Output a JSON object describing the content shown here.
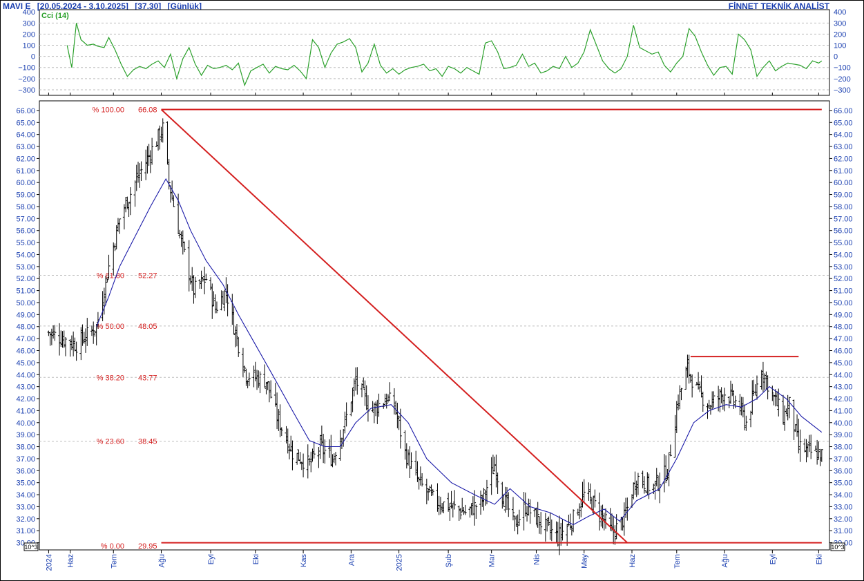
{
  "header": {
    "symbol": "MAVI  E",
    "range": "[20.05.2024 - 3.10.2025]",
    "last": "[37.30]",
    "period": "[Günlük]",
    "brand": "FİNNET TEKNİK ANALİST"
  },
  "colors": {
    "price": "#000000",
    "ma": "#1a1aa8",
    "cci": "#2aa02a",
    "fib": "#d41f1f",
    "axis_text": "#1a3fb0",
    "grid": "#bdbdbd"
  },
  "chart_data": [
    {
      "type": "line",
      "name_label": "Cci (14)",
      "y_ticks": [
        400,
        300,
        200,
        100,
        0,
        -100,
        -200,
        -300
      ],
      "ylim": [
        -350,
        420
      ],
      "x": [
        "2024-06-01",
        "2024-06-04",
        "2024-06-07",
        "2024-06-10",
        "2024-06-14",
        "2024-06-18",
        "2024-06-21",
        "2024-06-25",
        "2024-06-28",
        "2024-07-02",
        "2024-07-06",
        "2024-07-10",
        "2024-07-14",
        "2024-07-18",
        "2024-07-22",
        "2024-07-26",
        "2024-07-30",
        "2024-08-03",
        "2024-08-07",
        "2024-08-11",
        "2024-08-15",
        "2024-08-19",
        "2024-08-23",
        "2024-08-27",
        "2024-08-31",
        "2024-09-04",
        "2024-09-08",
        "2024-09-12",
        "2024-09-16",
        "2024-09-20",
        "2024-09-24",
        "2024-09-28",
        "2024-10-02",
        "2024-10-06",
        "2024-10-10",
        "2024-10-14",
        "2024-10-18",
        "2024-10-22",
        "2024-10-26",
        "2024-10-30",
        "2024-11-03",
        "2024-11-07",
        "2024-11-11",
        "2024-11-15",
        "2024-11-19",
        "2024-11-23",
        "2024-11-27",
        "2024-12-01",
        "2024-12-05",
        "2024-12-09",
        "2024-12-13",
        "2024-12-17",
        "2024-12-21",
        "2024-12-25",
        "2024-12-29",
        "2025-01-02",
        "2025-01-06",
        "2025-01-10",
        "2025-01-14",
        "2025-01-18",
        "2025-01-22",
        "2025-01-26",
        "2025-01-30",
        "2025-02-03",
        "2025-02-07",
        "2025-02-11",
        "2025-02-15",
        "2025-02-19",
        "2025-02-23",
        "2025-02-27",
        "2025-03-03",
        "2025-03-07",
        "2025-03-11",
        "2025-03-15",
        "2025-03-19",
        "2025-03-23",
        "2025-03-27",
        "2025-03-31",
        "2025-04-04",
        "2025-04-08",
        "2025-04-12",
        "2025-04-16",
        "2025-04-20",
        "2025-04-24",
        "2025-04-28",
        "2025-05-02",
        "2025-05-06",
        "2025-05-10",
        "2025-05-14",
        "2025-05-18",
        "2025-05-22",
        "2025-05-26",
        "2025-05-30",
        "2025-06-03",
        "2025-06-07",
        "2025-06-11",
        "2025-06-15",
        "2025-06-19",
        "2025-06-23",
        "2025-06-27",
        "2025-07-01",
        "2025-07-05",
        "2025-07-09",
        "2025-07-13",
        "2025-07-17",
        "2025-07-21",
        "2025-07-25",
        "2025-07-29",
        "2025-08-02",
        "2025-08-06",
        "2025-08-10",
        "2025-08-14",
        "2025-08-18",
        "2025-08-22",
        "2025-08-26",
        "2025-08-30",
        "2025-09-03",
        "2025-09-07",
        "2025-09-11",
        "2025-09-15",
        "2025-09-19",
        "2025-09-23",
        "2025-09-27",
        "2025-10-01",
        "2025-10-03"
      ],
      "values": [
        100,
        -100,
        300,
        150,
        100,
        110,
        90,
        80,
        170,
        60,
        -70,
        -180,
        -120,
        -90,
        -110,
        -70,
        -40,
        -100,
        20,
        -200,
        -20,
        80,
        -70,
        -170,
        -80,
        -110,
        -100,
        -80,
        -120,
        -60,
        -260,
        -130,
        -100,
        -70,
        -150,
        -90,
        -110,
        -120,
        -80,
        -130,
        -200,
        150,
        80,
        -100,
        30,
        110,
        130,
        160,
        80,
        -140,
        -60,
        110,
        -80,
        -150,
        -110,
        -160,
        -120,
        -100,
        -90,
        -70,
        -130,
        -110,
        -180,
        -90,
        -110,
        -150,
        -100,
        -130,
        -160,
        120,
        140,
        40,
        -110,
        -100,
        -80,
        20,
        -90,
        -60,
        -150,
        -130,
        -90,
        -110,
        0,
        -100,
        -60,
        40,
        240,
        100,
        -40,
        -110,
        -150,
        -110,
        0,
        280,
        80,
        50,
        20,
        40,
        -80,
        -140,
        -60,
        0,
        250,
        180,
        40,
        -80,
        -170,
        -100,
        -90,
        -160,
        200,
        150,
        60,
        -180,
        -100,
        -40,
        -130,
        -90,
        -60,
        -70,
        -80,
        -110,
        -40,
        -60,
        -40
      ],
      "x_ticks": [
        "2024",
        "Haz",
        "Tem",
        "Ağu",
        "Eyl",
        "Eki",
        "Kas",
        "Ara",
        "2025",
        "Şub",
        "Mar",
        "Nis",
        "May",
        "Haz",
        "Tem",
        "Ağu",
        "Eyl",
        "Eki"
      ]
    },
    {
      "type": "bar",
      "subtype": "ohlc",
      "y_ticks": [
        66.0,
        65.0,
        64.0,
        63.0,
        62.0,
        61.0,
        60.0,
        59.0,
        58.0,
        57.0,
        56.0,
        55.0,
        54.0,
        53.0,
        52.0,
        51.0,
        50.0,
        49.0,
        48.0,
        47.0,
        46.0,
        45.0,
        44.0,
        43.0,
        42.0,
        41.0,
        40.0,
        39.0,
        38.0,
        37.0,
        36.0,
        35.0,
        34.0,
        33.0,
        32.0,
        31.0,
        30.0
      ],
      "ylim": [
        29.4,
        66.8
      ],
      "scale_label": "10^3",
      "x_ticks": [
        "2024",
        "Haz",
        "Tem",
        "Ağu",
        "Eyl",
        "Eki",
        "Kas",
        "Ara",
        "2025",
        "Şub",
        "Mar",
        "Nis",
        "May",
        "Haz",
        "Tem",
        "Ağu",
        "Eyl",
        "Eki"
      ],
      "close_points": [
        [
          "2024-05-20",
          47.5
        ],
        [
          "2024-06-07",
          46.5
        ],
        [
          "2024-06-20",
          48.0
        ],
        [
          "2024-06-28",
          53.0
        ],
        [
          "2024-07-05",
          57.0
        ],
        [
          "2024-07-15",
          60.0
        ],
        [
          "2024-07-25",
          62.5
        ],
        [
          "2024-08-02",
          64.5
        ],
        [
          "2024-08-06",
          60.0
        ],
        [
          "2024-08-14",
          55.0
        ],
        [
          "2024-08-22",
          51.0
        ],
        [
          "2024-08-30",
          52.0
        ],
        [
          "2024-09-05",
          49.5
        ],
        [
          "2024-09-12",
          51.0
        ],
        [
          "2024-09-18",
          47.5
        ],
        [
          "2024-09-25",
          44.0
        ],
        [
          "2024-10-08",
          43.5
        ],
        [
          "2024-10-15",
          40.5
        ],
        [
          "2024-10-25",
          37.5
        ],
        [
          "2024-11-05",
          36.5
        ],
        [
          "2024-11-12",
          38.0
        ],
        [
          "2024-11-20",
          37.0
        ],
        [
          "2024-11-28",
          40.0
        ],
        [
          "2024-12-05",
          43.5
        ],
        [
          "2024-12-15",
          41.0
        ],
        [
          "2024-12-25",
          42.0
        ],
        [
          "2024-12-30",
          41.5
        ],
        [
          "2025-01-06",
          37.5
        ],
        [
          "2025-01-15",
          35.0
        ],
        [
          "2025-01-25",
          33.5
        ],
        [
          "2025-02-05",
          33.0
        ],
        [
          "2025-02-15",
          32.5
        ],
        [
          "2025-02-25",
          33.5
        ],
        [
          "2025-03-05",
          36.5
        ],
        [
          "2025-03-10",
          34.0
        ],
        [
          "2025-03-18",
          31.5
        ],
        [
          "2025-03-25",
          33.0
        ],
        [
          "2025-04-05",
          31.5
        ],
        [
          "2025-04-15",
          30.5
        ],
        [
          "2025-04-25",
          32.0
        ],
        [
          "2025-05-02",
          34.0
        ],
        [
          "2025-05-10",
          33.0
        ],
        [
          "2025-05-20",
          30.8
        ],
        [
          "2025-05-28",
          32.0
        ],
        [
          "2025-06-05",
          35.5
        ],
        [
          "2025-06-15",
          34.5
        ],
        [
          "2025-06-25",
          36.0
        ],
        [
          "2025-07-02",
          42.0
        ],
        [
          "2025-07-08",
          44.5
        ],
        [
          "2025-07-15",
          42.5
        ],
        [
          "2025-07-22",
          41.5
        ],
        [
          "2025-08-01",
          42.5
        ],
        [
          "2025-08-10",
          41.5
        ],
        [
          "2025-08-15",
          40.0
        ],
        [
          "2025-08-25",
          44.5
        ],
        [
          "2025-09-02",
          42.0
        ],
        [
          "2025-09-08",
          40.5
        ],
        [
          "2025-09-12",
          41.5
        ],
        [
          "2025-09-18",
          38.0
        ],
        [
          "2025-09-26",
          37.5
        ],
        [
          "2025-10-03",
          37.3
        ]
      ],
      "ma_points": [
        [
          "2024-06-20",
          48.0
        ],
        [
          "2024-06-28",
          50.5
        ],
        [
          "2024-07-05",
          53.0
        ],
        [
          "2024-07-15",
          55.5
        ],
        [
          "2024-07-25",
          58.0
        ],
        [
          "2024-08-04",
          60.3
        ],
        [
          "2024-08-12",
          58.5
        ],
        [
          "2024-08-20",
          56.0
        ],
        [
          "2024-08-30",
          53.5
        ],
        [
          "2024-09-10",
          51.5
        ],
        [
          "2024-09-20",
          49.0
        ],
        [
          "2024-10-01",
          46.5
        ],
        [
          "2024-10-12",
          44.0
        ],
        [
          "2024-10-25",
          41.0
        ],
        [
          "2024-11-05",
          38.5
        ],
        [
          "2024-11-15",
          38.0
        ],
        [
          "2024-11-25",
          38.0
        ],
        [
          "2024-12-05",
          40.0
        ],
        [
          "2024-12-15",
          41.2
        ],
        [
          "2024-12-28",
          41.5
        ],
        [
          "2025-01-08",
          40.0
        ],
        [
          "2025-01-20",
          37.0
        ],
        [
          "2025-02-05",
          35.0
        ],
        [
          "2025-02-20",
          34.0
        ],
        [
          "2025-03-05",
          33.2
        ],
        [
          "2025-03-15",
          34.5
        ],
        [
          "2025-03-28",
          33.0
        ],
        [
          "2025-04-10",
          32.5
        ],
        [
          "2025-04-25",
          31.5
        ],
        [
          "2025-05-05",
          32.2
        ],
        [
          "2025-05-15",
          32.8
        ],
        [
          "2025-05-25",
          31.8
        ],
        [
          "2025-06-05",
          33.5
        ],
        [
          "2025-06-20",
          34.5
        ],
        [
          "2025-07-01",
          37.0
        ],
        [
          "2025-07-12",
          40.0
        ],
        [
          "2025-07-22",
          41.0
        ],
        [
          "2025-08-02",
          41.5
        ],
        [
          "2025-08-12",
          41.3
        ],
        [
          "2025-08-22",
          42.0
        ],
        [
          "2025-08-30",
          43.0
        ],
        [
          "2025-09-10",
          42.0
        ],
        [
          "2025-09-20",
          40.5
        ],
        [
          "2025-10-03",
          39.2
        ]
      ],
      "fib_levels": [
        {
          "pct": "% 100.00",
          "value": "66.08",
          "level": 66.08
        },
        {
          "pct": "% 61.80",
          "value": "52.27",
          "level": 52.27
        },
        {
          "pct": "% 50.00",
          "value": "48.05",
          "level": 48.05
        },
        {
          "pct": "% 38.20",
          "value": "43.77",
          "level": 43.77
        },
        {
          "pct": "% 23.60",
          "value": "38.45",
          "level": 38.45
        },
        {
          "pct": "% 0.00",
          "value": "29.95",
          "level": 29.95
        }
      ],
      "trend_lines": [
        {
          "from": [
            "2024-08-01",
            66.08
          ],
          "to": [
            "2025-05-30",
            30.0
          ]
        },
        {
          "from": [
            "2024-08-01",
            66.08
          ],
          "to": [
            "2025-10-03",
            66.08
          ]
        },
        {
          "from": [
            "2024-08-01",
            30.0
          ],
          "to": [
            "2025-10-03",
            30.0
          ]
        },
        {
          "from": [
            "2025-07-10",
            45.5
          ],
          "to": [
            "2025-09-18",
            45.5
          ]
        }
      ]
    }
  ]
}
